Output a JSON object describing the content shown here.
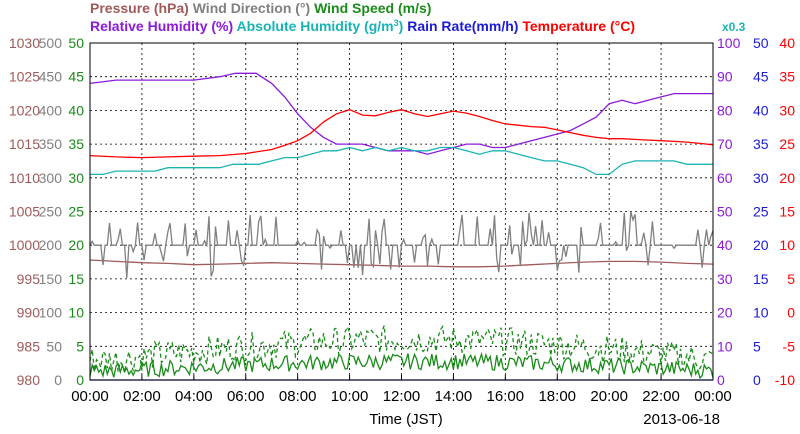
{
  "chart_data": {
    "type": "line",
    "xlabel": "Time (JST)",
    "date": "2013-06-18",
    "x_ticks": [
      "00:00",
      "02:00",
      "04:00",
      "06:00",
      "08:00",
      "10:00",
      "12:00",
      "14:00",
      "16:00",
      "18:00",
      "20:00",
      "22:00",
      "00:00"
    ],
    "x_range_hours": [
      0,
      24
    ],
    "grid": true,
    "legend": {
      "row1": [
        {
          "label": "Pressure (hPa)",
          "color": "#a05a5a"
        },
        {
          "label": "Wind Direction (°)",
          "color": "#808080"
        },
        {
          "label": "Wind Speed (m/s)",
          "color": "#1a8c1a"
        }
      ],
      "row2": [
        {
          "label": "Relative Humidity (%)",
          "color": "#8c1ad9"
        },
        {
          "label": "Absolute Humidity (g/m",
          "sup": "3",
          "tail": ")",
          "color": "#1ab3b3"
        },
        {
          "label": "Rain Rate(mm/h)",
          "color": "#1a1ad9"
        },
        {
          "label": "Temperature (°C)",
          "color": "#ff0000"
        }
      ],
      "multiplier": {
        "label": "x0.3",
        "color": "#1ab3b3"
      }
    },
    "axes": {
      "pressure": {
        "color": "#a05a5a",
        "ticks": [
          "1030",
          "1025",
          "1020",
          "1015",
          "1010",
          "1005",
          "1000",
          "995",
          "990",
          "985",
          "980"
        ],
        "range": [
          980,
          1030
        ]
      },
      "wind_direction": {
        "color": "#808080",
        "ticks": [
          "500",
          "450",
          "400",
          "350",
          "300",
          "250",
          "200",
          "150",
          "100",
          "50",
          "0"
        ],
        "range": [
          0,
          500
        ]
      },
      "wind_speed": {
        "color": "#1a8c1a",
        "ticks": [
          "50",
          "45",
          "40",
          "35",
          "30",
          "25",
          "20",
          "15",
          "10",
          "5",
          "0"
        ],
        "range": [
          0,
          50
        ]
      },
      "relative_humidity": {
        "color": "#8c1ad9",
        "ticks": [
          "100",
          "90",
          "80",
          "70",
          "60",
          "50",
          "40",
          "30",
          "20",
          "10",
          "0"
        ],
        "range": [
          0,
          100
        ]
      },
      "rain_rate": {
        "color": "#1a1ad9",
        "ticks": [
          "50",
          "45",
          "40",
          "35",
          "30",
          "25",
          "20",
          "15",
          "10",
          "5",
          "0"
        ],
        "range": [
          0,
          50
        ]
      },
      "temperature": {
        "color": "#ff0000",
        "ticks": [
          "40",
          "35",
          "30",
          "25",
          "20",
          "15",
          "10",
          "5",
          "0",
          "-5",
          "-10"
        ],
        "range": [
          -10,
          40
        ]
      }
    },
    "series": [
      {
        "name": "Relative Humidity (%)",
        "axis": "relative_humidity",
        "color": "#8c1ad9",
        "x": [
          0,
          1,
          2,
          3,
          4,
          5,
          5.6,
          6.4,
          7,
          7.5,
          8,
          8.5,
          9,
          9.5,
          10,
          10.5,
          11,
          11.5,
          12,
          12.5,
          13,
          13.5,
          14,
          14.5,
          15,
          15.5,
          16,
          16.5,
          17,
          17.5,
          18,
          18.5,
          19,
          19.5,
          20,
          20.5,
          21,
          21.5,
          22,
          22.5,
          23,
          23.5,
          24
        ],
        "y": [
          88,
          89,
          89,
          89,
          89,
          90,
          91,
          91,
          88,
          84,
          79,
          75,
          72,
          70,
          70,
          70,
          69,
          68,
          68,
          68,
          67,
          68,
          69,
          70,
          70,
          69,
          69,
          70,
          71,
          72,
          73,
          74,
          76,
          78,
          82,
          83,
          82,
          83,
          84,
          85,
          85,
          85,
          85
        ]
      },
      {
        "name": "Absolute Humidity x0.3",
        "axis": "relative_humidity",
        "color": "#1ab3b3",
        "x": [
          0,
          0.5,
          1,
          1.5,
          2,
          2.5,
          3,
          3.5,
          4,
          4.5,
          5,
          5.5,
          6,
          6.5,
          7,
          7.5,
          8,
          8.5,
          9,
          9.5,
          10,
          10.5,
          11,
          11.5,
          12,
          12.5,
          13,
          13.5,
          14,
          14.5,
          15,
          15.5,
          16,
          16.5,
          17,
          17.5,
          18,
          18.5,
          19,
          19.5,
          20,
          20.5,
          21,
          21.5,
          22,
          22.5,
          23,
          23.5,
          24
        ],
        "y": [
          61,
          61,
          62,
          62,
          62,
          62,
          63,
          63,
          63,
          63,
          63,
          64,
          64,
          64,
          65,
          66,
          66,
          67,
          68,
          68,
          69,
          68,
          69,
          68,
          69,
          68,
          68,
          69,
          69,
          68,
          67,
          68,
          68,
          67,
          66,
          65,
          65,
          64,
          63,
          61,
          61,
          64,
          65,
          65,
          65,
          65,
          64,
          64,
          64
        ]
      },
      {
        "name": "Temperature (°C)",
        "axis": "temperature",
        "color": "#ff0000",
        "x": [
          0,
          1,
          2,
          3,
          4,
          5,
          6,
          6.5,
          7,
          7.5,
          8,
          8.5,
          9,
          9.5,
          10,
          10.5,
          11,
          11.5,
          12,
          12.5,
          13,
          13.5,
          14,
          14.5,
          15,
          15.5,
          16,
          16.5,
          17,
          17.5,
          18,
          18.5,
          19,
          19.5,
          20,
          20.5,
          21,
          21.5,
          22,
          22.5,
          23,
          23.5,
          24
        ],
        "y": [
          23.3,
          23.1,
          23.0,
          23.1,
          23.2,
          23.3,
          23.6,
          23.9,
          24.2,
          24.8,
          25.5,
          26.6,
          28.3,
          29.5,
          30.1,
          29.3,
          29.2,
          29.7,
          30.1,
          29.5,
          29.1,
          29.5,
          29.9,
          29.6,
          29.1,
          28.5,
          28.0,
          27.8,
          27.6,
          27.5,
          27.1,
          26.7,
          26.3,
          26.0,
          25.8,
          25.8,
          25.7,
          25.6,
          25.5,
          25.4,
          25.3,
          25.1,
          24.9
        ]
      },
      {
        "name": "Pressure (hPa)",
        "axis": "pressure",
        "color": "#a05a5a",
        "x": [
          0,
          1,
          2,
          3,
          4,
          5,
          6,
          7,
          8,
          9,
          10,
          11,
          12,
          13,
          14,
          15,
          16,
          17,
          18,
          19,
          20,
          21,
          22,
          23,
          24
        ],
        "y": [
          997.8,
          997.6,
          997.4,
          997.3,
          997.1,
          997.2,
          997.3,
          997.4,
          997.3,
          997.2,
          997.1,
          997.0,
          996.9,
          996.9,
          996.8,
          996.8,
          996.9,
          997.1,
          997.3,
          997.5,
          997.6,
          997.6,
          997.5,
          997.3,
          997.2
        ]
      },
      {
        "name": "Wind Direction (°)",
        "axis": "wind_direction",
        "color": "#808080",
        "style": "noisy",
        "x": [
          0,
          24
        ],
        "baseline": 200,
        "high": 250,
        "low": 150
      },
      {
        "name": "Wind Speed peak (m/s)",
        "axis": "wind_speed",
        "color": "#1a8c1a",
        "dashed": true,
        "style": "noisy",
        "x": [
          0,
          24
        ],
        "baseline": 5.5,
        "high": 8.5,
        "low": 1.5
      },
      {
        "name": "Wind Speed mean (m/s)",
        "axis": "wind_speed",
        "color": "#1a8c1a",
        "style": "noisy",
        "x": [
          0,
          24
        ],
        "baseline": 2.5,
        "high": 4.5,
        "low": 0.5
      },
      {
        "name": "Rain Rate(mm/h)",
        "axis": "rain_rate",
        "color": "#1a1ad9",
        "x": [
          0,
          24
        ],
        "y": [
          0,
          0
        ]
      }
    ]
  }
}
